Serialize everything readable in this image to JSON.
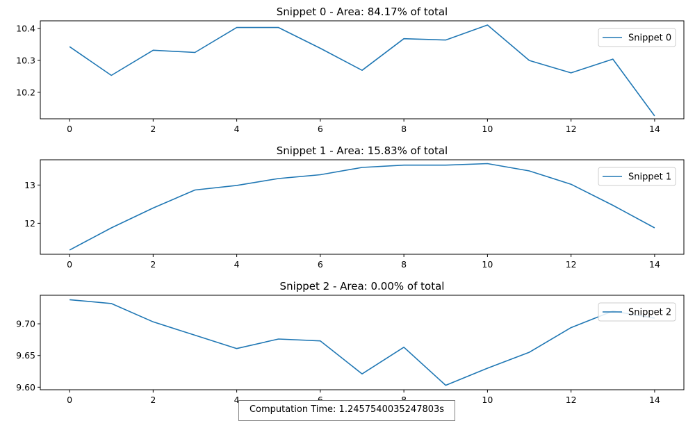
{
  "chart_data": [
    {
      "type": "line",
      "title": "Snippet 0 - Area: 84.17% of total",
      "x": [
        0,
        1,
        2,
        3,
        4,
        5,
        6,
        7,
        8,
        9,
        10,
        11,
        12,
        13,
        14
      ],
      "xticks": [
        0,
        2,
        4,
        6,
        8,
        10,
        12,
        14
      ],
      "yticks": [
        10.2,
        10.3,
        10.4
      ],
      "ylim": [
        10.117,
        10.424
      ],
      "legend": "top-right",
      "grid": false,
      "series": [
        {
          "name": "Snippet 0",
          "color": "#1f77b4",
          "values": [
            10.343,
            10.253,
            10.332,
            10.325,
            10.403,
            10.403,
            10.338,
            10.269,
            10.368,
            10.364,
            10.411,
            10.3,
            10.261,
            10.304,
            10.126
          ]
        }
      ]
    },
    {
      "type": "line",
      "title": "Snippet 1 - Area: 15.83% of total",
      "x": [
        0,
        1,
        2,
        3,
        4,
        5,
        6,
        7,
        8,
        9,
        10,
        11,
        12,
        13,
        14
      ],
      "xticks": [
        0,
        2,
        4,
        6,
        8,
        10,
        12,
        14
      ],
      "yticks": [
        12,
        13
      ],
      "ylim": [
        11.19,
        13.66
      ],
      "legend": "top-right",
      "grid": false,
      "series": [
        {
          "name": "Snippet 1",
          "color": "#1f77b4",
          "values": [
            11.3,
            11.88,
            12.4,
            12.87,
            12.99,
            13.17,
            13.27,
            13.46,
            13.52,
            13.52,
            13.56,
            13.37,
            13.02,
            12.47,
            11.88
          ]
        }
      ]
    },
    {
      "type": "line",
      "title": "Snippet 2 - Area: 0.00% of total",
      "x": [
        0,
        1,
        2,
        3,
        4,
        5,
        6,
        7,
        8,
        9,
        10,
        11,
        12,
        13,
        14
      ],
      "xticks": [
        0,
        2,
        4,
        6,
        8,
        10,
        12,
        14
      ],
      "yticks": [
        9.6,
        9.65,
        9.7
      ],
      "ylim": [
        9.596,
        9.745
      ],
      "legend": "top-right",
      "grid": false,
      "series": [
        {
          "name": "Snippet 2",
          "color": "#1f77b4",
          "values": [
            9.738,
            9.732,
            9.703,
            9.682,
            9.661,
            9.676,
            9.673,
            9.621,
            9.663,
            9.603,
            9.63,
            9.655,
            9.694,
            9.72,
            9.709
          ]
        }
      ]
    }
  ],
  "footer": {
    "text": "Computation Time: 1.2457540035247803s"
  }
}
